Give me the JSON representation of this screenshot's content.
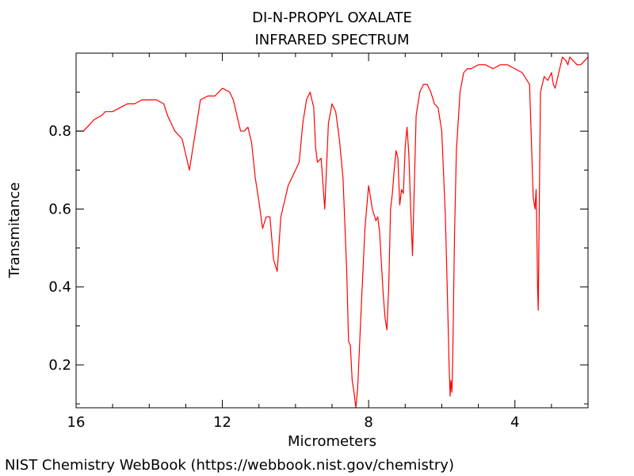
{
  "chart_data": {
    "type": "line",
    "title": "DI-N-PROPYL OXALATE",
    "subtitle": "INFRARED SPECTRUM",
    "xlabel": "Micrometers",
    "ylabel": "Transmitance",
    "xlim": [
      16,
      2
    ],
    "ylim": [
      0.09,
      1.0
    ],
    "x_ticks": [
      16,
      12,
      8,
      4
    ],
    "y_ticks": [
      0.2,
      0.4,
      0.6,
      0.8
    ],
    "grid": false,
    "line_color": "#ff0000",
    "series": [
      {
        "x": [
          16.0,
          15.8,
          15.6,
          15.5,
          15.3,
          15.2,
          15.0,
          14.8,
          14.6,
          14.4,
          14.2,
          14.0,
          13.8,
          13.6,
          13.5,
          13.3,
          13.1,
          13.0,
          12.9,
          12.7,
          12.6,
          12.4,
          12.2,
          12.0,
          11.8,
          11.7,
          11.5,
          11.4,
          11.3,
          11.2,
          11.1,
          11.0,
          10.9,
          10.8,
          10.7,
          10.6,
          10.5,
          10.4,
          10.2,
          10.0,
          9.9,
          9.8,
          9.7,
          9.6,
          9.5,
          9.45,
          9.4,
          9.3,
          9.2,
          9.1,
          9.0,
          8.9,
          8.8,
          8.7,
          8.65,
          8.6,
          8.55,
          8.5,
          8.45,
          8.4,
          8.35,
          8.3,
          8.2,
          8.1,
          8.0,
          7.95,
          7.9,
          7.8,
          7.75,
          7.7,
          7.6,
          7.55,
          7.5,
          7.45,
          7.4,
          7.35,
          7.3,
          7.25,
          7.2,
          7.15,
          7.1,
          7.05,
          7.0,
          6.95,
          6.9,
          6.85,
          6.8,
          6.7,
          6.6,
          6.5,
          6.4,
          6.3,
          6.2,
          6.1,
          6.0,
          5.9,
          5.85,
          5.8,
          5.77,
          5.75,
          5.72,
          5.7,
          5.65,
          5.6,
          5.5,
          5.4,
          5.3,
          5.2,
          5.0,
          4.8,
          4.6,
          4.4,
          4.2,
          4.0,
          3.8,
          3.6,
          3.5,
          3.45,
          3.42,
          3.4,
          3.38,
          3.36,
          3.34,
          3.3,
          3.2,
          3.1,
          3.0,
          2.95,
          2.9,
          2.8,
          2.7,
          2.6,
          2.55,
          2.5,
          2.4,
          2.3,
          2.2,
          2.1,
          2.0
        ],
        "y": [
          0.8,
          0.8,
          0.82,
          0.83,
          0.84,
          0.85,
          0.85,
          0.86,
          0.87,
          0.87,
          0.88,
          0.88,
          0.88,
          0.87,
          0.84,
          0.8,
          0.78,
          0.74,
          0.7,
          0.82,
          0.88,
          0.89,
          0.89,
          0.91,
          0.9,
          0.88,
          0.8,
          0.8,
          0.81,
          0.77,
          0.68,
          0.62,
          0.55,
          0.58,
          0.58,
          0.47,
          0.44,
          0.58,
          0.66,
          0.7,
          0.72,
          0.82,
          0.88,
          0.9,
          0.86,
          0.76,
          0.72,
          0.73,
          0.6,
          0.82,
          0.87,
          0.85,
          0.78,
          0.68,
          0.56,
          0.44,
          0.26,
          0.25,
          0.16,
          0.13,
          0.09,
          0.14,
          0.35,
          0.55,
          0.66,
          0.63,
          0.6,
          0.57,
          0.58,
          0.54,
          0.38,
          0.32,
          0.29,
          0.4,
          0.6,
          0.64,
          0.7,
          0.75,
          0.73,
          0.61,
          0.65,
          0.64,
          0.76,
          0.81,
          0.74,
          0.6,
          0.48,
          0.84,
          0.9,
          0.92,
          0.92,
          0.9,
          0.87,
          0.86,
          0.8,
          0.58,
          0.4,
          0.2,
          0.12,
          0.16,
          0.13,
          0.22,
          0.54,
          0.75,
          0.9,
          0.95,
          0.96,
          0.96,
          0.97,
          0.97,
          0.96,
          0.97,
          0.97,
          0.96,
          0.95,
          0.92,
          0.63,
          0.6,
          0.65,
          0.55,
          0.4,
          0.34,
          0.55,
          0.9,
          0.94,
          0.93,
          0.95,
          0.92,
          0.91,
          0.95,
          0.99,
          0.98,
          0.97,
          0.99,
          0.98,
          0.97,
          0.97,
          0.98,
          0.99
        ]
      }
    ]
  },
  "footer": {
    "text": "NIST Chemistry WebBook (https://webbook.nist.gov/chemistry)"
  }
}
